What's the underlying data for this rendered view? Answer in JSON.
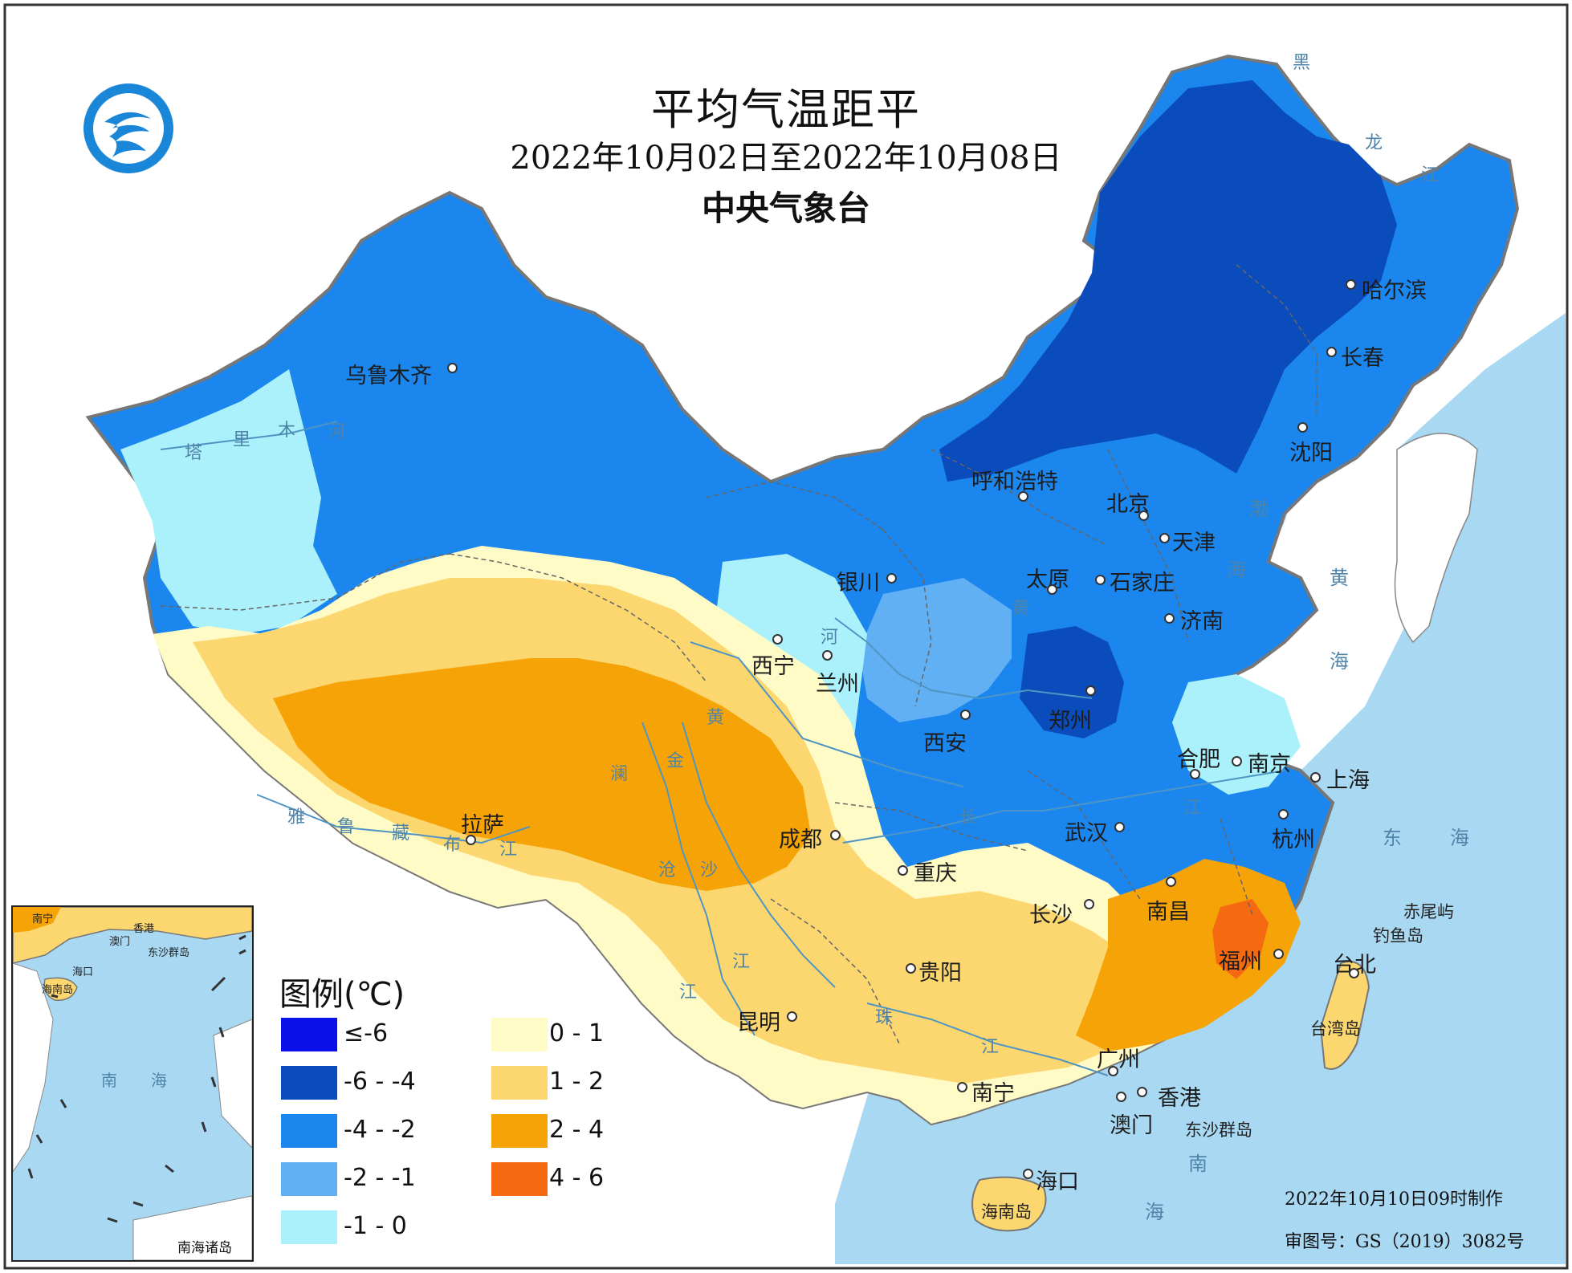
{
  "title": "平均气温距平",
  "date_range": "2022年10月02日至2022年10月08日",
  "agency": "中央气象台",
  "legend": {
    "title": "图例(℃)",
    "items": [
      {
        "label": "≤-6",
        "color": "#0a10e8"
      },
      {
        "label": "-6 - -4",
        "color": "#0b4cbc"
      },
      {
        "label": "-4 - -2",
        "color": "#1a86ee"
      },
      {
        "label": "-2 - -1",
        "color": "#62b0f4"
      },
      {
        "label": "-1 - 0",
        "color": "#aaf1fb"
      },
      {
        "label": "0 - 1",
        "color": "#fffbc6"
      },
      {
        "label": "1 - 2",
        "color": "#fcd770"
      },
      {
        "label": "2 - 4",
        "color": "#f6a308"
      },
      {
        "label": "4 - 6",
        "color": "#f56a10"
      }
    ]
  },
  "cities": {
    "urumqi": "乌鲁木齐",
    "harbin": "哈尔滨",
    "changchun": "长春",
    "shenyang": "沈阳",
    "hohhot": "呼和浩特",
    "beijing": "北京",
    "tianjin": "天津",
    "yinchuan": "银川",
    "taiyuan": "太原",
    "shijiazhuang": "石家庄",
    "jinan": "济南",
    "xining": "西宁",
    "lanzhou": "兰州",
    "zhengzhou": "郑州",
    "xian": "西安",
    "hefei": "合肥",
    "nanjing": "南京",
    "shanghai": "上海",
    "lhasa": "拉萨",
    "chengdu": "成都",
    "wuhan": "武汉",
    "hangzhou": "杭州",
    "chongqing": "重庆",
    "changsha": "长沙",
    "nanchang": "南昌",
    "guiyang": "贵阳",
    "fuzhou": "福州",
    "taipei": "台北",
    "kunming": "昆明",
    "guangzhou": "广州",
    "nanning": "南宁",
    "hongkong": "香港",
    "macau": "澳门",
    "haikou": "海口"
  },
  "rivers": {
    "tarim": [
      "塔",
      "里",
      "木",
      "河"
    ],
    "yarlung": [
      "雅",
      "鲁",
      "藏",
      "布",
      "江"
    ],
    "yellow1": [
      "黄"
    ],
    "yellow2": [
      "河"
    ],
    "yellow3": [
      "黄"
    ],
    "lancang": [
      "澜",
      "沧",
      "江"
    ],
    "jinsha": [
      "金",
      "沙",
      "江"
    ],
    "yangtze": [
      "长",
      "江"
    ],
    "pearl": [
      "珠",
      "江"
    ],
    "heilong": [
      "黑",
      "龙",
      "江"
    ]
  },
  "seas": {
    "bohai": [
      "渤",
      "海"
    ],
    "yellow_sea": [
      "黄",
      "海"
    ],
    "east_sea": [
      "东",
      "海"
    ],
    "south_sea": [
      "南",
      "海"
    ]
  },
  "islands": {
    "chiwei": "赤尾屿",
    "diaoyu": "钓鱼岛",
    "taiwan": "台湾岛",
    "dongsha": "东沙群岛",
    "hainan": "海南岛"
  },
  "inset": {
    "caption": "南海诸岛",
    "labels": {
      "nanning": "南宁",
      "hongkong": "香港",
      "macau": "澳门",
      "dongsha": "东沙群岛",
      "haikou": "海口",
      "hainan": "海南岛"
    },
    "sea": [
      "南",
      "海"
    ]
  },
  "footer": {
    "credit": "2022年10月10日09时制作",
    "approval": "审图号：GS（2019）3082号"
  }
}
